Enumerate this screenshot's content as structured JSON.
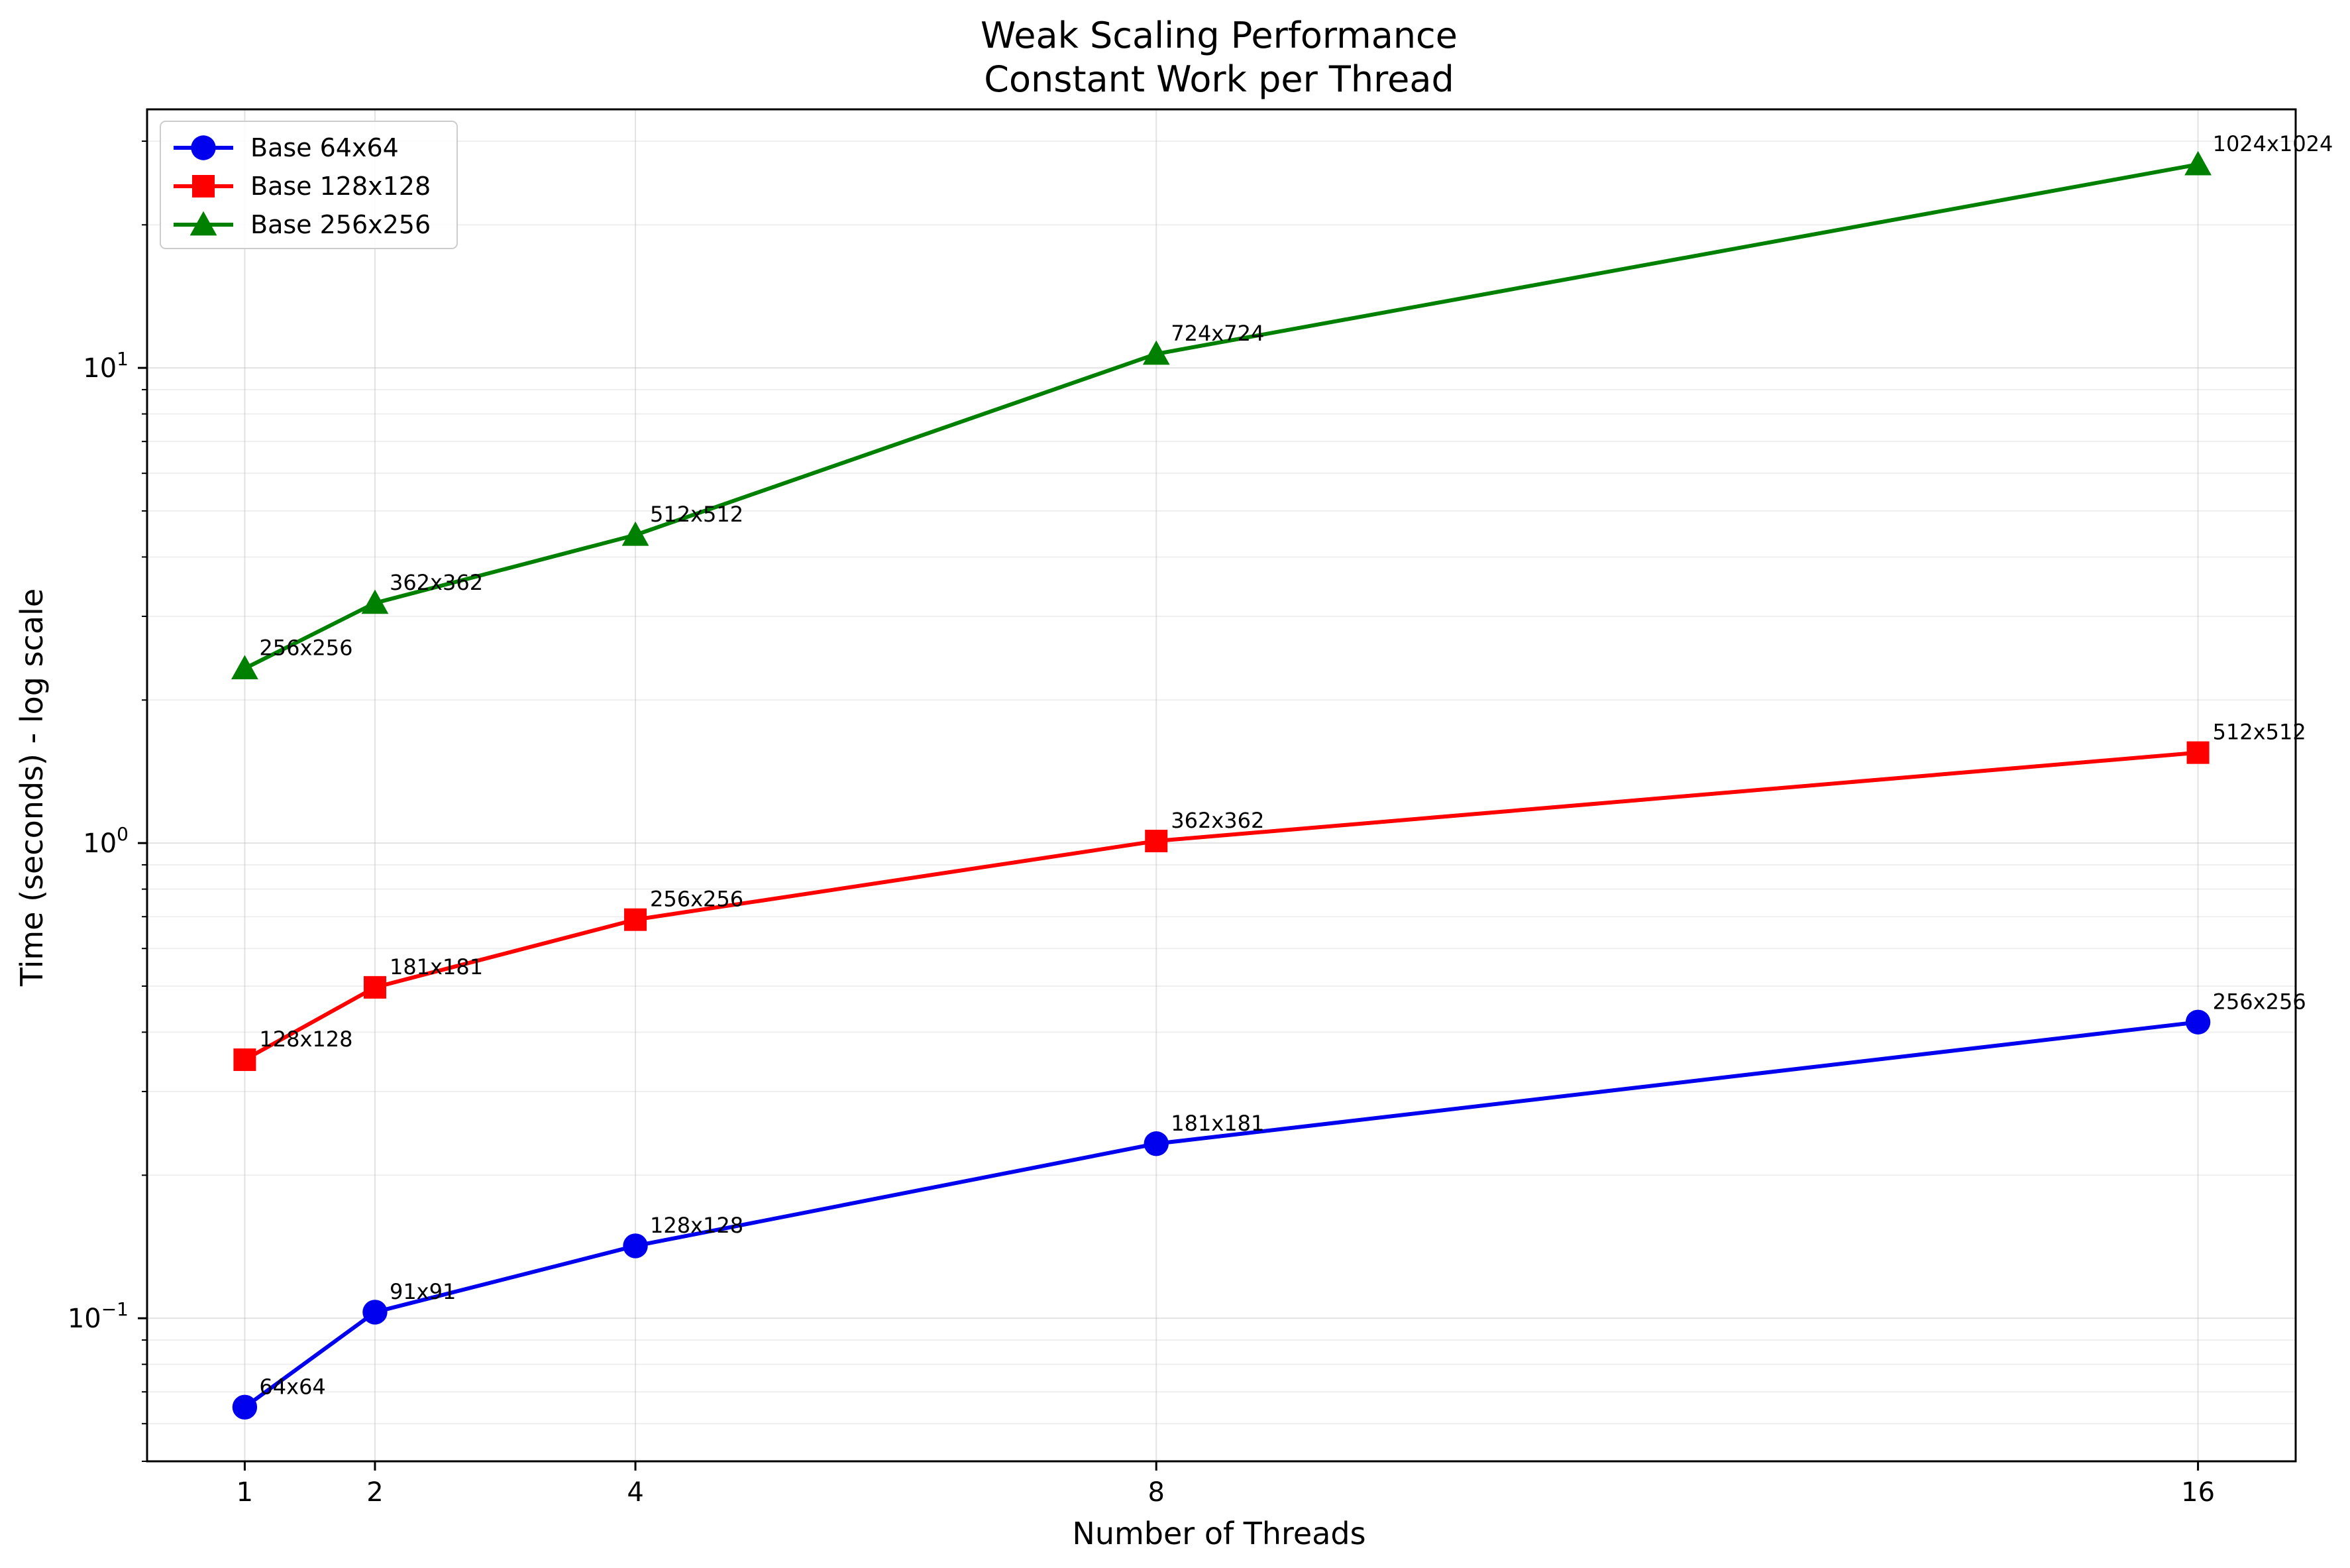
{
  "chart_data": {
    "type": "line",
    "title": "Weak Scaling Performance",
    "subtitle": "Constant Work per Thread",
    "xlabel": "Number of Threads",
    "ylabel": "Time (seconds) - log scale",
    "yscale": "log",
    "ylim": [
      0.05,
      35
    ],
    "xlim": [
      0.25,
      16.75
    ],
    "xticks": [
      1,
      2,
      4,
      8,
      16
    ],
    "yticks": [
      {
        "base": "10",
        "exp": "1",
        "value": 10
      },
      {
        "base": "10",
        "exp": "0",
        "value": 1
      },
      {
        "base": "10",
        "exp": "−1",
        "value": 0.1
      }
    ],
    "grid": true,
    "legend_position": "top-left",
    "series": [
      {
        "name": "Base 64x64",
        "color": "#0000ee",
        "marker": "circle",
        "x": [
          1,
          2,
          4,
          8,
          16
        ],
        "y": [
          0.065,
          0.103,
          0.142,
          0.233,
          0.42
        ],
        "labels": [
          "64x64",
          "91x91",
          "128x128",
          "181x181",
          "256x256"
        ]
      },
      {
        "name": "Base 128x128",
        "color": "#ff0000",
        "marker": "square",
        "x": [
          1,
          2,
          4,
          8,
          16
        ],
        "y": [
          0.35,
          0.497,
          0.69,
          1.01,
          1.55
        ],
        "labels": [
          "128x128",
          "181x181",
          "256x256",
          "362x362",
          "512x512"
        ]
      },
      {
        "name": "Base 256x256",
        "color": "#008000",
        "marker": "triangle",
        "x": [
          1,
          2,
          4,
          8,
          16
        ],
        "y": [
          2.33,
          3.2,
          4.45,
          10.7,
          26.8
        ],
        "labels": [
          "256x256",
          "362x362",
          "512x512",
          "724x724",
          "1024x1024"
        ]
      }
    ]
  }
}
